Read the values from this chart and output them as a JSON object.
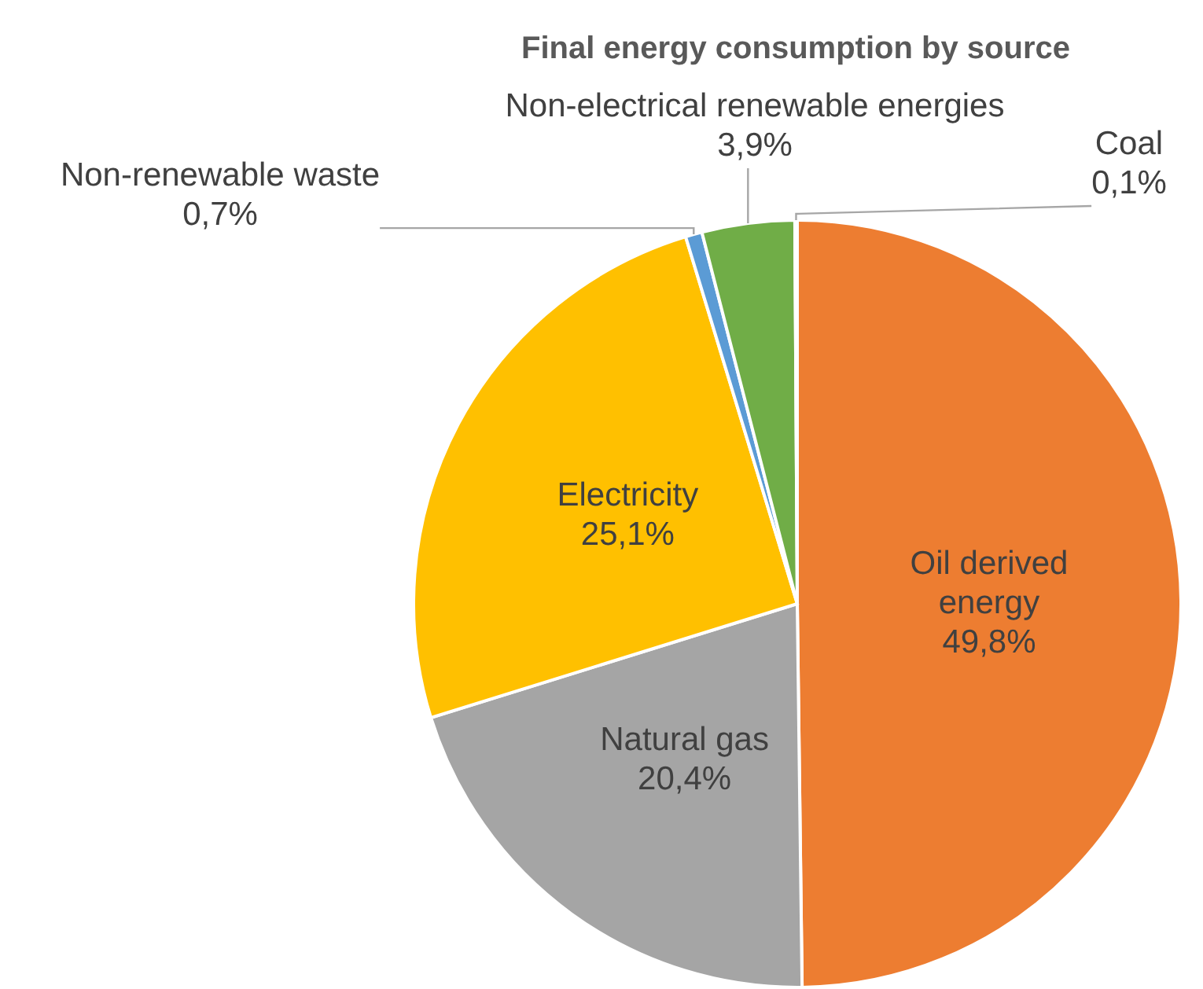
{
  "chart_data": {
    "type": "pie",
    "title": "Final energy consumption by source",
    "categories": [
      "Oil derived energy",
      "Natural gas",
      "Electricity",
      "Non-renewable waste",
      "Non-electrical renewable energies",
      "Coal"
    ],
    "values": [
      49.8,
      20.4,
      25.1,
      0.7,
      3.9,
      0.1
    ],
    "value_labels": [
      "49,8%",
      "20,4%",
      "25,1%",
      "0,7%",
      "3,9%",
      "0,1%"
    ],
    "colors": [
      "#ed7d31",
      "#a5a5a5",
      "#ffc000",
      "#5b9bd5",
      "#70ad47",
      "#4472c4"
    ]
  }
}
